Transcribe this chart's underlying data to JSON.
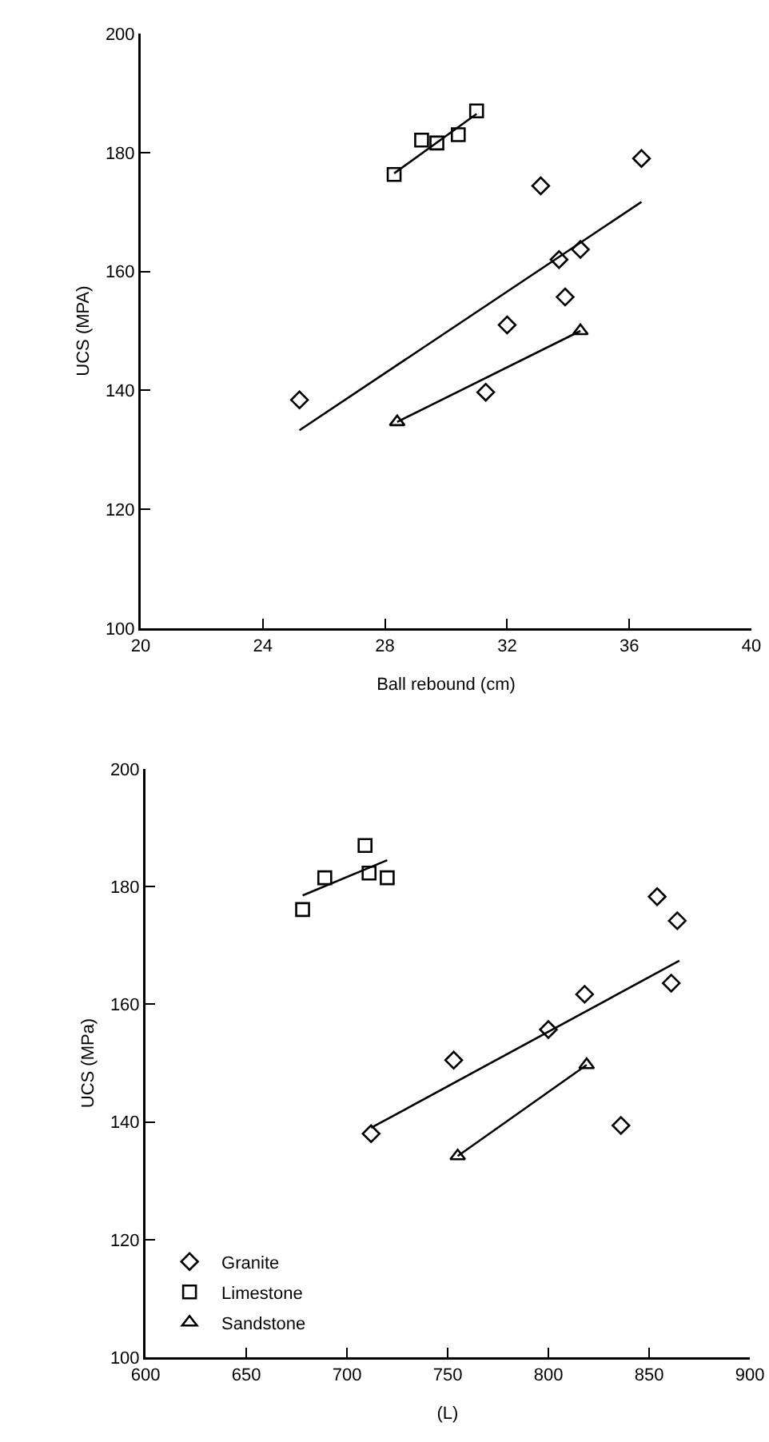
{
  "chart_data": [
    {
      "type": "scatter",
      "xlabel": "Ball rebound (cm)",
      "ylabel": "UCS (MPA)",
      "xlim": [
        20,
        40
      ],
      "xticks": [
        20,
        24,
        28,
        32,
        36,
        40
      ],
      "ylim": [
        100,
        200
      ],
      "yticks": [
        100,
        120,
        140,
        160,
        180,
        200
      ],
      "grid": false,
      "legend": false,
      "series": [
        {
          "color": "#000000",
          "marker": "diamond",
          "x": [
            25.2,
            31.3,
            32.0,
            33.1,
            33.7,
            33.9,
            34.4,
            36.4
          ],
          "values": [
            138.4,
            139.7,
            151,
            174.4,
            162,
            155.7,
            163.7,
            179
          ]
        },
        {
          "color": "#000000",
          "marker": "square",
          "x": [
            28.3,
            29.2,
            29.7,
            30.4,
            31.0
          ],
          "values": [
            176.3,
            182.1,
            181.6,
            183,
            187
          ]
        },
        {
          "color": "#000000",
          "marker": "triangle",
          "x": [
            28.4,
            34.4
          ],
          "values": [
            134.7,
            150
          ]
        },
        {
          "type": "line",
          "color": "#000000",
          "x": [
            25.2,
            36.4
          ],
          "values": [
            133.3,
            171.7
          ]
        },
        {
          "type": "line",
          "color": "#000000",
          "x": [
            28.3,
            31.0
          ],
          "values": [
            176.5,
            186.5
          ]
        },
        {
          "type": "line",
          "color": "#000000",
          "x": [
            28.4,
            34.4
          ],
          "values": [
            134.7,
            150
          ]
        }
      ]
    },
    {
      "type": "scatter",
      "xlabel": "(L)",
      "ylabel": "UCS (MPa)",
      "xlim": [
        600,
        900
      ],
      "xticks": [
        600,
        650,
        700,
        750,
        800,
        850,
        900
      ],
      "ylim": [
        100,
        200
      ],
      "yticks": [
        100,
        120,
        140,
        160,
        180,
        200
      ],
      "grid": false,
      "legend": "bottom left",
      "series": [
        {
          "name": "Granite",
          "color": "#000000",
          "marker": "diamond",
          "x": [
            712,
            753,
            800,
            818,
            836,
            854,
            861,
            864
          ],
          "values": [
            138,
            150.5,
            155.7,
            161.7,
            139.4,
            178.3,
            163.6,
            174.2
          ]
        },
        {
          "name": "Limestone",
          "color": "#000000",
          "marker": "square",
          "x": [
            678,
            689,
            709,
            711,
            720
          ],
          "values": [
            176.1,
            181.5,
            187,
            182.3,
            181.5
          ]
        },
        {
          "name": "Sandstone",
          "color": "#000000",
          "marker": "triangle",
          "x": [
            755,
            819
          ],
          "values": [
            134.2,
            149.7
          ]
        },
        {
          "type": "line",
          "color": "#000000",
          "x": [
            712,
            865
          ],
          "values": [
            139,
            167.4
          ]
        },
        {
          "type": "line",
          "color": "#000000",
          "x": [
            678,
            720
          ],
          "values": [
            178.5,
            184.5
          ]
        },
        {
          "type": "line",
          "color": "#000000",
          "x": [
            755,
            819
          ],
          "values": [
            134.2,
            149.7
          ]
        }
      ]
    }
  ]
}
